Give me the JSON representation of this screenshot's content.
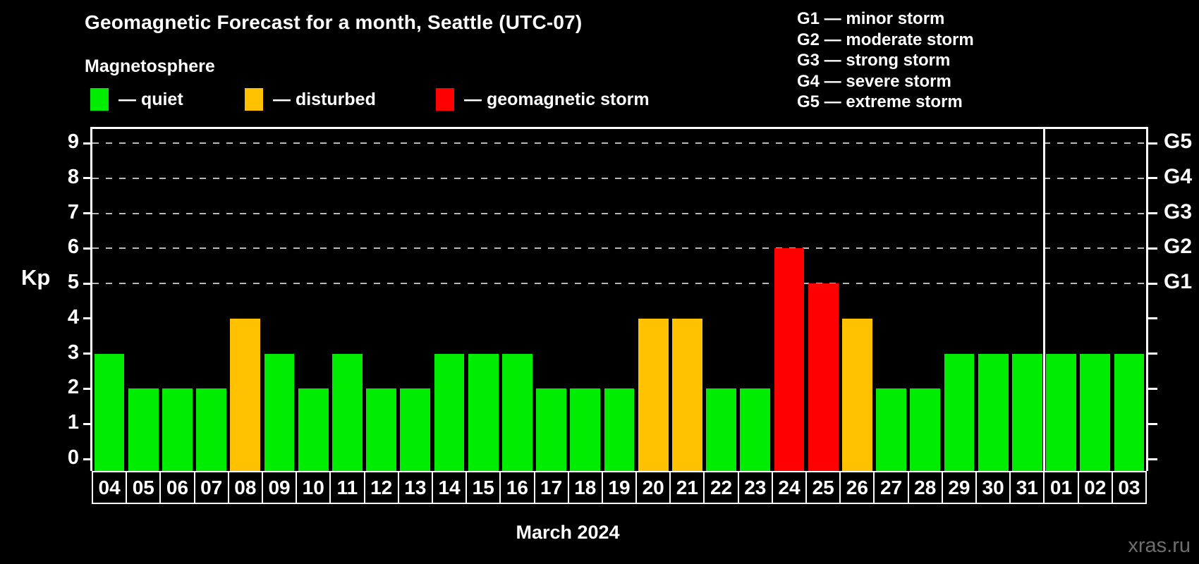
{
  "title": "Geomagnetic Forecast for a month, Seattle (UTC-07)",
  "subtitle": "Magnetosphere",
  "legend": {
    "items": [
      {
        "key": "quiet",
        "label": "— quiet"
      },
      {
        "key": "disturbed",
        "label": "— disturbed"
      },
      {
        "key": "storm",
        "label": "— geomagnetic storm"
      }
    ]
  },
  "g_legend": {
    "items": [
      "G1 — minor storm",
      "G2 — moderate storm",
      "G3 — strong storm",
      "G4 — severe storm",
      "G5 — extreme storm"
    ]
  },
  "axis": {
    "y_label": "Kp",
    "x_caption": "March 2024"
  },
  "watermark": "xras.ru",
  "colors": {
    "quiet": "#00ec00",
    "disturbed": "#ffc100",
    "storm": "#ff0000",
    "frame": "#ffffff",
    "grid": "#b8b8b8",
    "background": "#000000",
    "watermark": "#6e6e6e"
  },
  "chart_data": {
    "type": "bar",
    "title": "Geomagnetic Forecast for a month, Seattle (UTC-07)",
    "xlabel": "March 2024",
    "ylabel": "Kp",
    "ylim": [
      0,
      9
    ],
    "y_ticks": [
      0,
      1,
      2,
      3,
      4,
      5,
      6,
      7,
      8,
      9
    ],
    "grid": "dashed-horizontal-at-storm-levels",
    "grid_levels": [
      5,
      6,
      7,
      8,
      9
    ],
    "legend_position": "top-left",
    "categories": [
      "04",
      "05",
      "06",
      "07",
      "08",
      "09",
      "10",
      "11",
      "12",
      "13",
      "14",
      "15",
      "16",
      "17",
      "18",
      "19",
      "20",
      "21",
      "22",
      "23",
      "24",
      "25",
      "26",
      "27",
      "28",
      "29",
      "30",
      "31",
      "01",
      "02",
      "03"
    ],
    "values": [
      3,
      2,
      2,
      2,
      4,
      3,
      2,
      3,
      2,
      2,
      3,
      3,
      3,
      2,
      2,
      2,
      4,
      4,
      2,
      2,
      6,
      5,
      4,
      2,
      2,
      3,
      3,
      3,
      3,
      3,
      3
    ],
    "statuses": [
      "quiet",
      "quiet",
      "quiet",
      "quiet",
      "disturbed",
      "quiet",
      "quiet",
      "quiet",
      "quiet",
      "quiet",
      "quiet",
      "quiet",
      "quiet",
      "quiet",
      "quiet",
      "quiet",
      "disturbed",
      "disturbed",
      "quiet",
      "quiet",
      "storm",
      "storm",
      "disturbed",
      "quiet",
      "quiet",
      "quiet",
      "quiet",
      "quiet",
      "quiet",
      "quiet",
      "quiet"
    ],
    "right_scale": [
      {
        "label": "G1",
        "kp": 5
      },
      {
        "label": "G2",
        "kp": 6
      },
      {
        "label": "G3",
        "kp": 7
      },
      {
        "label": "G4",
        "kp": 8
      },
      {
        "label": "G5",
        "kp": 9
      }
    ],
    "month_separator_after_index": 27
  }
}
